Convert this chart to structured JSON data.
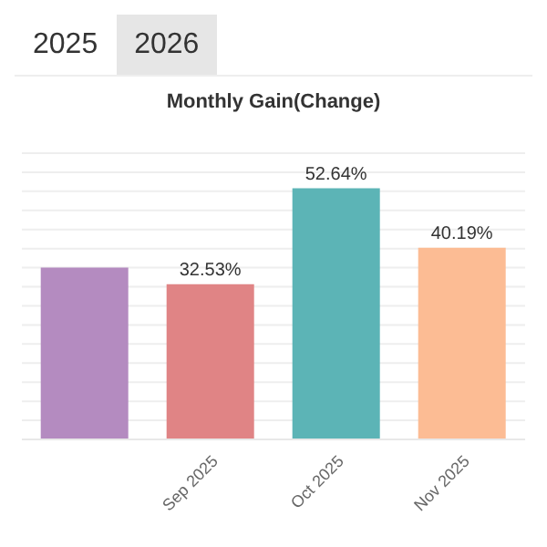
{
  "chart_data": {
    "type": "bar",
    "title": "Monthly Gain(Change)",
    "annotations": [
      "2025",
      "2026"
    ],
    "categories": [
      null,
      "Sep 2025",
      "Oct 2025",
      "Nov 2025"
    ],
    "values": [
      36,
      32.53,
      52.64,
      40.19
    ],
    "colors": [
      "#b48bc0",
      "#e08485",
      "#5cb4b6",
      "#fcbc94"
    ],
    "value_labels": [
      null,
      "32.53%",
      "52.64%",
      "40.19%"
    ],
    "ylim": [
      0,
      60
    ],
    "yticks": [
      {
        "value": 0,
        "label": null
      },
      {
        "value": 4,
        "label": null
      },
      {
        "value": 8,
        "label": null
      },
      {
        "value": 12,
        "label": null
      },
      {
        "value": 16,
        "label": null
      },
      {
        "value": 20,
        "label": null
      },
      {
        "value": 24,
        "label": null
      },
      {
        "value": 28,
        "label": null
      },
      {
        "value": 32,
        "label": null
      },
      {
        "value": 36,
        "label": null
      },
      {
        "value": 40,
        "label": null
      },
      {
        "value": 44,
        "label": null
      },
      {
        "value": 48,
        "label": null
      },
      {
        "value": 52,
        "label": null
      },
      {
        "value": 56,
        "label": null
      },
      {
        "value": 60,
        "label": null
      }
    ],
    "grid": "y",
    "tick_labels": "x"
  }
}
